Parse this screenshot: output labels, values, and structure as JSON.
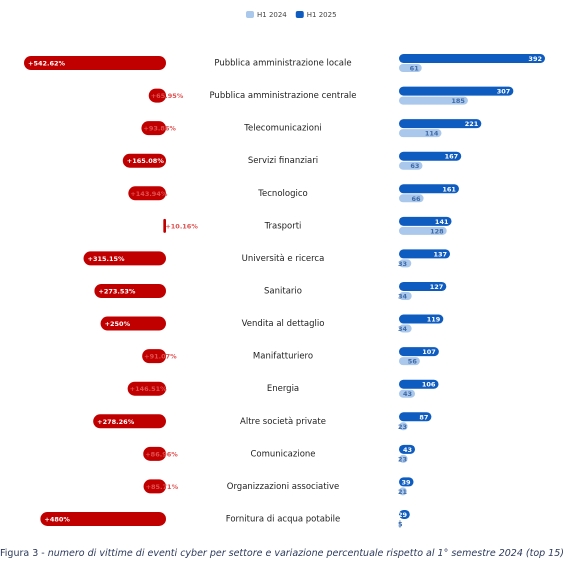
{
  "chart_data": {
    "type": "diverging-bar",
    "categories": [
      "Pubblica amministrazione locale",
      "Pubblica amministrazione centrale",
      "Telecomunicazioni",
      "Servizi finanziari",
      "Tecnologico",
      "Trasporti",
      "Università e ricerca",
      "Sanitario",
      "Vendita al dettaglio",
      "Manifatturiero",
      "Energia",
      "Altre società private",
      "Comunicazione",
      "Organizzazioni associative",
      "Fornitura di acqua potabile"
    ],
    "change": {
      "color": "#c00000",
      "values": [
        542.62,
        65.95,
        93.86,
        165.08,
        143.94,
        10.16,
        315.15,
        273.53,
        250,
        91.07,
        146.51,
        278.26,
        86.96,
        85.71,
        480
      ],
      "value_labels": [
        "+542.62%",
        "+65.95%",
        "+93.86%",
        "+165.08%",
        "+143.94%",
        "+10.16%",
        "+315.15%",
        "+273.53%",
        "+250%",
        "+91.07%",
        "+146.51%",
        "+278.26%",
        "+86.96%",
        "+85.71%",
        "+480%"
      ]
    },
    "series": [
      {
        "name": "H1 2024",
        "color": "#a9c8ec",
        "values": [
          61,
          185,
          114,
          63,
          66,
          128,
          33,
          34,
          34,
          56,
          43,
          23,
          23,
          21,
          5
        ]
      },
      {
        "name": "H1 2025",
        "color": "#0f5cc0",
        "values": [
          392,
          307,
          221,
          167,
          161,
          141,
          137,
          127,
          119,
          107,
          106,
          87,
          43,
          39,
          29
        ]
      }
    ],
    "caption_prefix": "Figura 3 -",
    "caption": "numero di vittime di eventi cyber per settore e variazione percentuale rispetto al 1° semestre 2024 (top 15)"
  }
}
